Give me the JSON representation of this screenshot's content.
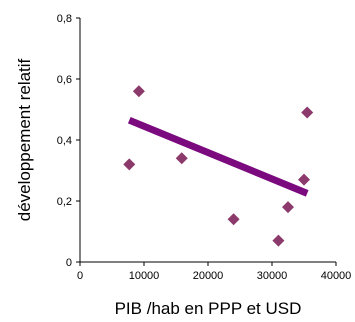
{
  "chart_data": {
    "type": "scatter",
    "xlabel": "PIB /hab en PPP et USD",
    "ylabel": "développement relatif",
    "xlim": [
      0,
      40000
    ],
    "ylim": [
      0,
      0.8
    ],
    "x_ticks": [
      0,
      10000,
      20000,
      30000,
      40000
    ],
    "x_tick_labels": [
      "0",
      "10000",
      "20000",
      "30000",
      "40000"
    ],
    "y_ticks": [
      0,
      0.2,
      0.4,
      0.6,
      0.8
    ],
    "y_tick_labels": [
      "0",
      "0,2",
      "0,4",
      "0,6",
      "0,8"
    ],
    "grid": false,
    "points": [
      {
        "x": 7700,
        "y": 0.32
      },
      {
        "x": 9200,
        "y": 0.56
      },
      {
        "x": 15900,
        "y": 0.34
      },
      {
        "x": 24000,
        "y": 0.14
      },
      {
        "x": 31000,
        "y": 0.07
      },
      {
        "x": 32500,
        "y": 0.18
      },
      {
        "x": 35000,
        "y": 0.27
      },
      {
        "x": 35500,
        "y": 0.49
      }
    ],
    "trendline": {
      "x": [
        7700,
        35500
      ],
      "y": [
        0.465,
        0.225
      ]
    },
    "colors": {
      "marker": "#8b3a6b",
      "trendline": "#7b0a7e"
    }
  }
}
